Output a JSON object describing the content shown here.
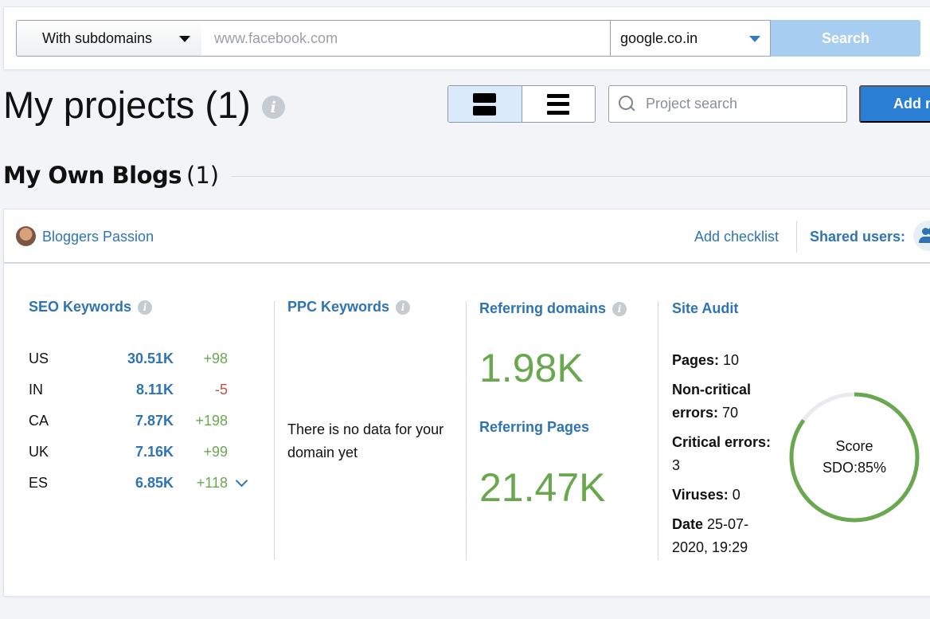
{
  "search_bar": {
    "scope": "With subdomains",
    "domain_placeholder": "www.facebook.com",
    "engine": "google.co.in",
    "search_label": "Search"
  },
  "header": {
    "title": "My projects (1)",
    "search_placeholder": "Project search",
    "add_label": "Add new project"
  },
  "group": {
    "title": "My Own Blogs",
    "count": "(1)"
  },
  "project": {
    "name": "Bloggers Passion",
    "add_checklist": "Add checklist",
    "shared_users": "Shared users:",
    "seo": {
      "title": "SEO Keywords",
      "rows": [
        {
          "country": "US",
          "value": "30.51K",
          "delta": "+98",
          "trend": "up"
        },
        {
          "country": "IN",
          "value": "8.11K",
          "delta": "-5",
          "trend": "down"
        },
        {
          "country": "CA",
          "value": "7.87K",
          "delta": "+198",
          "trend": "up"
        },
        {
          "country": "UK",
          "value": "7.16K",
          "delta": "+99",
          "trend": "up"
        },
        {
          "country": "ES",
          "value": "6.85K",
          "delta": "+118",
          "trend": "up"
        }
      ]
    },
    "ppc": {
      "title": "PPC Keywords",
      "empty_message": "There is no data for your domain yet"
    },
    "backlinks": {
      "domains_title": "Referring domains",
      "domains_value": "1.98K",
      "pages_title": "Referring Pages",
      "pages_value": "21.47K"
    },
    "audit": {
      "title": "Site Audit",
      "pages_label": "Pages:",
      "pages_value": "10",
      "noncritical_label": "Non-critical errors:",
      "noncritical_value": "70",
      "critical_label": "Critical errors:",
      "critical_value": "3",
      "viruses_label": "Viruses:",
      "viruses_value": "0",
      "date_label": "Date",
      "date_value": "25-07-2020, 19:29",
      "score_label": "Score",
      "score_text": "SDO:85%",
      "score_percent": 85
    }
  },
  "colors": {
    "accent": "#2e74b5",
    "positive": "#6aa84f",
    "negative": "#c0504d",
    "button": "#2a7fd4"
  }
}
